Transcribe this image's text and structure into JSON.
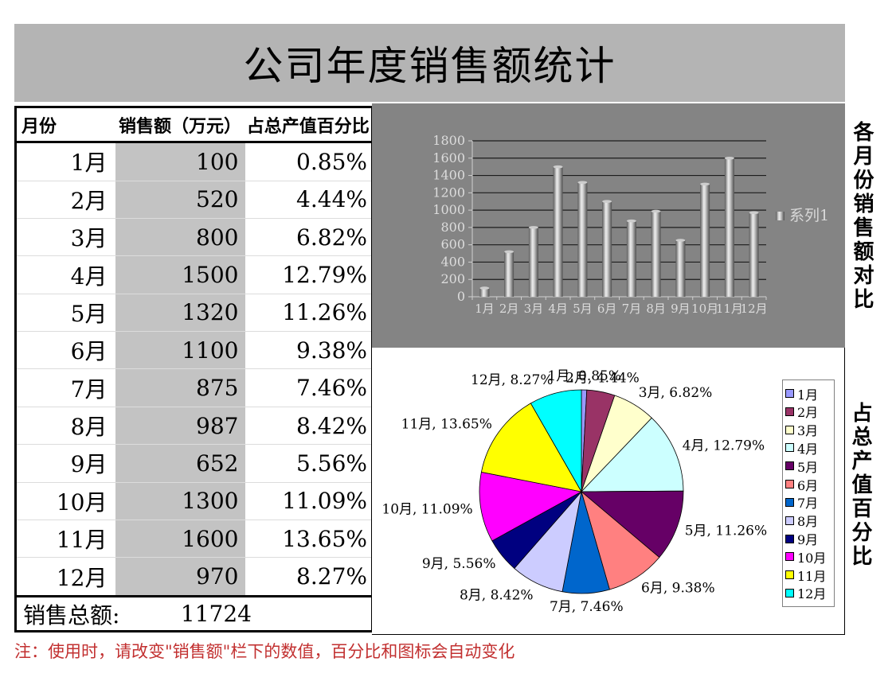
{
  "title": "公司年度销售额统计",
  "table": {
    "headers": [
      "月份",
      "销售额（万元）",
      "占总产值百分比"
    ],
    "rows": [
      [
        "1月",
        "100",
        "0.85%"
      ],
      [
        "2月",
        "520",
        "4.44%"
      ],
      [
        "3月",
        "800",
        "6.82%"
      ],
      [
        "4月",
        "1500",
        "12.79%"
      ],
      [
        "5月",
        "1320",
        "11.26%"
      ],
      [
        "6月",
        "1100",
        "9.38%"
      ],
      [
        "7月",
        "875",
        "7.46%"
      ],
      [
        "8月",
        "987",
        "8.42%"
      ],
      [
        "9月",
        "652",
        "5.56%"
      ],
      [
        "10月",
        "1300",
        "11.09%"
      ],
      [
        "11月",
        "1600",
        "13.65%"
      ],
      [
        "12月",
        "970",
        "8.27%"
      ]
    ],
    "total_label": "销售总额:",
    "total_value": "11724"
  },
  "note": "注：使用时，请改变\"销售额\"栏下的数值，百分比和图标会自动变化",
  "note_color": "#c23030",
  "chart_data": [
    {
      "type": "bar",
      "section_label": "各月份销售额对比",
      "categories": [
        "1月",
        "2月",
        "3月",
        "4月",
        "5月",
        "6月",
        "7月",
        "8月",
        "9月",
        "10月",
        "11月",
        "12月"
      ],
      "series": [
        {
          "name": "系列1",
          "values": [
            100,
            520,
            800,
            1500,
            1320,
            1100,
            875,
            987,
            652,
            1300,
            1600,
            970
          ]
        }
      ],
      "ylim": [
        0,
        1800
      ],
      "ytick_step": 200,
      "grid": true,
      "legend_position": "right",
      "plot_bg": "#848484",
      "gridline_color": "#1c1c1c",
      "axis_color": "#cfcfcf",
      "text_color": "#dcdcdc"
    },
    {
      "type": "pie",
      "section_label": "占总产值百分比",
      "categories": [
        "1月",
        "2月",
        "3月",
        "4月",
        "5月",
        "6月",
        "7月",
        "8月",
        "9月",
        "10月",
        "11月",
        "12月"
      ],
      "values": [
        0.85,
        4.44,
        6.82,
        12.79,
        11.26,
        9.38,
        7.46,
        8.42,
        5.56,
        11.09,
        13.65,
        8.27
      ],
      "colors": [
        "#9999FF",
        "#993366",
        "#FFFFCC",
        "#CCFFFF",
        "#660066",
        "#FF8080",
        "#0066CC",
        "#CCCCFF",
        "#000080",
        "#FF00FF",
        "#FFFF00",
        "#00FFFF"
      ],
      "label_format": "{category}, {value}%",
      "legend_position": "right",
      "grid": false
    }
  ]
}
